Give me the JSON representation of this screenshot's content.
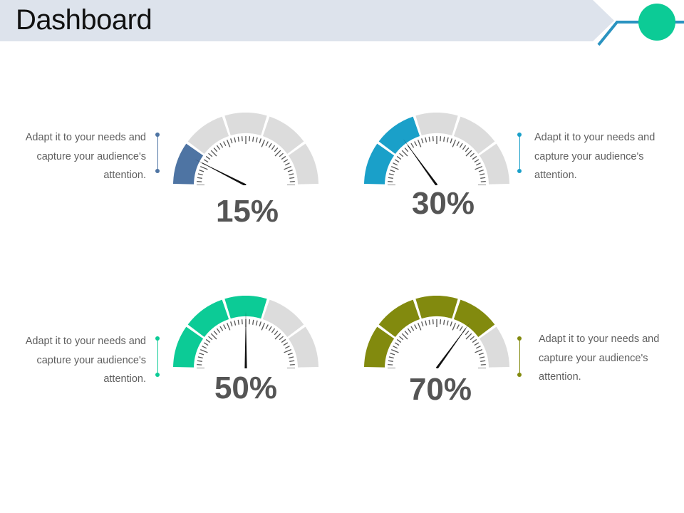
{
  "title": "Dashboard",
  "colors": {
    "header_band": "#dde3ec",
    "header_line": "#2a93c0",
    "header_circle": "#0ccb96",
    "segment_inactive": "#dcdcdc",
    "ticks": "#555555",
    "needle": "#111111",
    "text": "#5f5f5f",
    "percent_text": "#555555"
  },
  "gauges": [
    {
      "label": "15%",
      "value": 0.15,
      "color": "#4e74a3",
      "caption": [
        "Adapt it to your needs and",
        "capture your audience's",
        "attention."
      ]
    },
    {
      "label": "30%",
      "value": 0.3,
      "color": "#1aa0c9",
      "caption": [
        "Adapt it to your needs and",
        "capture your audience's",
        "attention."
      ]
    },
    {
      "label": "50%",
      "value": 0.5,
      "color": "#0ccb96",
      "caption": [
        "Adapt it to your needs and",
        "capture your audience's",
        "attention."
      ]
    },
    {
      "label": "70%",
      "value": 0.7,
      "color": "#828a0e",
      "caption": [
        "Adapt it to your needs and",
        "capture your audience's",
        "attention."
      ]
    }
  ]
}
